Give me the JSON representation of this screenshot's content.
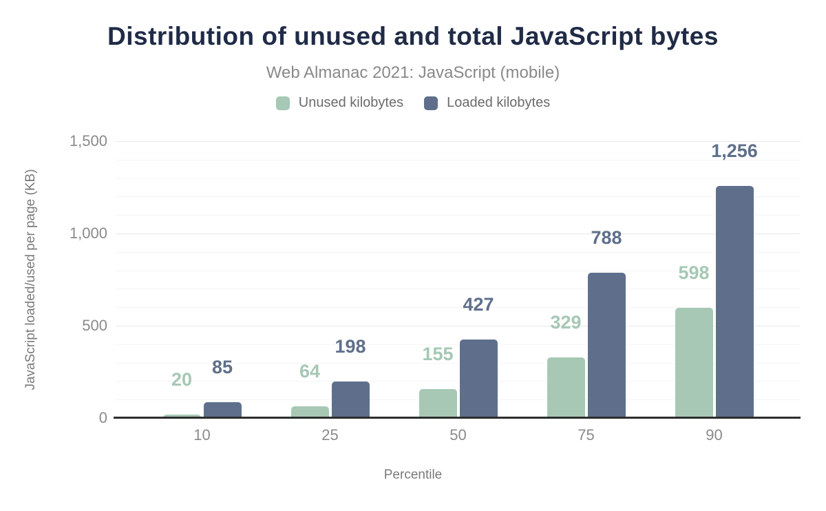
{
  "chart_data": {
    "type": "bar",
    "title": "Distribution of unused and total JavaScript bytes",
    "subtitle": "Web Almanac 2021: JavaScript (mobile)",
    "xlabel": "Percentile",
    "ylabel": "JavaScript loaded/used per page (KB)",
    "categories": [
      "10",
      "25",
      "50",
      "75",
      "90"
    ],
    "series": [
      {
        "name": "Unused kilobytes",
        "color": "#a6c8b5",
        "values": [
          20,
          64,
          155,
          329,
          598
        ],
        "labels": [
          "20",
          "64",
          "155",
          "329",
          "598"
        ]
      },
      {
        "name": "Loaded kilobytes",
        "color": "#5f6f8b",
        "values": [
          85,
          198,
          427,
          788,
          1256
        ],
        "labels": [
          "85",
          "198",
          "427",
          "788",
          "1,256"
        ]
      }
    ],
    "ylim": [
      0,
      1500
    ],
    "yticks": [
      {
        "value": 0,
        "label": "0"
      },
      {
        "value": 500,
        "label": "500"
      },
      {
        "value": 1000,
        "label": "1,000"
      },
      {
        "value": 1500,
        "label": "1,500"
      }
    ],
    "y_minor_step": 100,
    "y_major_step": 500,
    "grid": "on",
    "legend_position": "top"
  },
  "colors": {
    "title": "#202b47",
    "subtitle": "#898989",
    "tick_label": "#8a8a8a",
    "axis_title": "#7a7a7a",
    "legend_text": "#6b6b6b",
    "axis_line": "#2d2d2d",
    "grid_major": "#e7e7e7",
    "grid_minor": "#f5f5f5",
    "background": "#ffffff"
  }
}
